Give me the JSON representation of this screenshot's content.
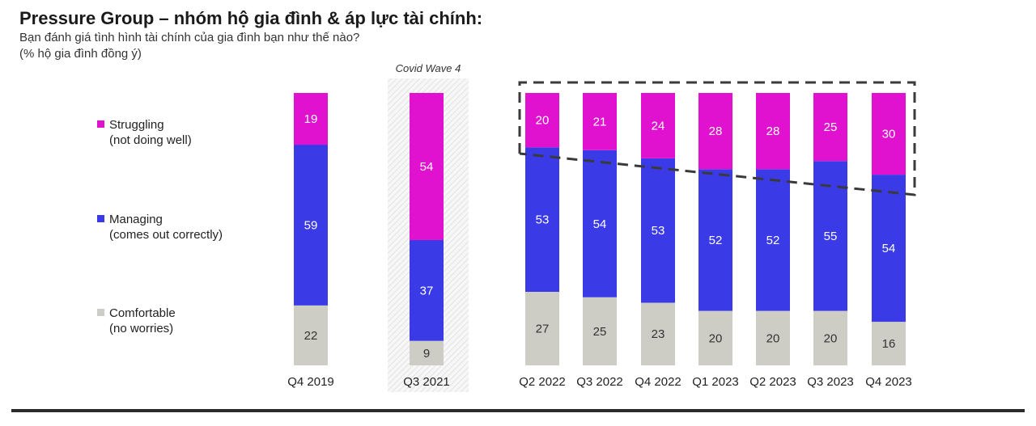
{
  "title": "Pressure Group – nhóm hộ gia đình & áp lực tài chính:",
  "subtitle": "Bạn đánh giá tình hình tài chính của gia đình bạn như thế nào?",
  "unit_note": "(% hộ gia đình đồng ý)",
  "annotation": "Covid Wave 4",
  "legend": [
    {
      "line1": "Struggling",
      "line2": "(not doing well)",
      "color": "#e012cf"
    },
    {
      "line1": "Managing",
      "line2": "(comes out correctly)",
      "color": "#3a3ae6"
    },
    {
      "line1": "Comfortable",
      "line2": "(no worries)",
      "color": "#cdcdc6"
    }
  ],
  "chart_data": {
    "type": "bar",
    "stacked": true,
    "categories": [
      "Q4 2019",
      "Q3 2021",
      "Q2 2022",
      "Q3 2022",
      "Q4 2022",
      "Q1 2023",
      "Q2 2023",
      "Q3 2023",
      "Q4 2023"
    ],
    "series": [
      {
        "name": "Comfortable",
        "color": "#cdcdc6",
        "label_color": "#333333",
        "values": [
          22,
          9,
          27,
          25,
          23,
          20,
          20,
          20,
          16
        ]
      },
      {
        "name": "Managing",
        "color": "#3a3ae6",
        "label_color": "#ffffff",
        "values": [
          59,
          37,
          53,
          54,
          53,
          52,
          52,
          55,
          54
        ]
      },
      {
        "name": "Struggling",
        "color": "#e012cf",
        "label_color": "#ffffff",
        "values": [
          19,
          54,
          20,
          21,
          24,
          28,
          28,
          25,
          30
        ]
      }
    ],
    "ylim": [
      0,
      100
    ],
    "highlighted_category": "Q3 2021",
    "highlight_group": [
      "Q2 2022",
      "Q3 2022",
      "Q4 2022",
      "Q1 2023",
      "Q2 2023",
      "Q3 2023",
      "Q4 2023"
    ]
  }
}
